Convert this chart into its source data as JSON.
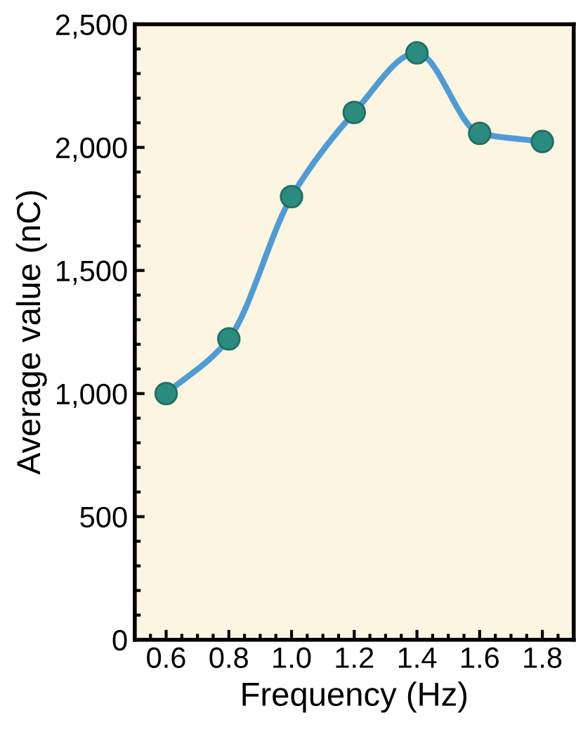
{
  "chart_data": {
    "type": "line",
    "xlabel": "Frequency (Hz)",
    "ylabel": "Average value (nC)",
    "x": [
      0.6,
      0.8,
      1.0,
      1.2,
      1.4,
      1.6,
      1.8
    ],
    "series": [
      {
        "color": "#4f9bd4",
        "values": [
          1000,
          1222,
          1800,
          2142,
          2384,
          2057,
          2024
        ]
      }
    ],
    "marker": "circle",
    "line_style": "solid",
    "xlim": [
      0.5,
      1.9
    ],
    "xticks": [
      {
        "value": 0.6,
        "label": "0.6"
      },
      {
        "value": 0.8,
        "label": "0.8"
      },
      {
        "value": 1.0,
        "label": "1.0"
      },
      {
        "value": 1.2,
        "label": "1.2"
      },
      {
        "value": 1.4,
        "label": "1.4"
      },
      {
        "value": 1.6,
        "label": "1.6"
      },
      {
        "value": 1.8,
        "label": "1.8"
      }
    ],
    "ylim": [
      0,
      2500
    ],
    "yticks": [
      0,
      500,
      {
        "value": 1000,
        "label": "1,000"
      },
      {
        "value": 1500,
        "label": "1,500"
      },
      {
        "value": 2000,
        "label": "2,000"
      },
      {
        "value": 2500,
        "label": "2,500"
      }
    ],
    "grid": false,
    "legend": false
  }
}
